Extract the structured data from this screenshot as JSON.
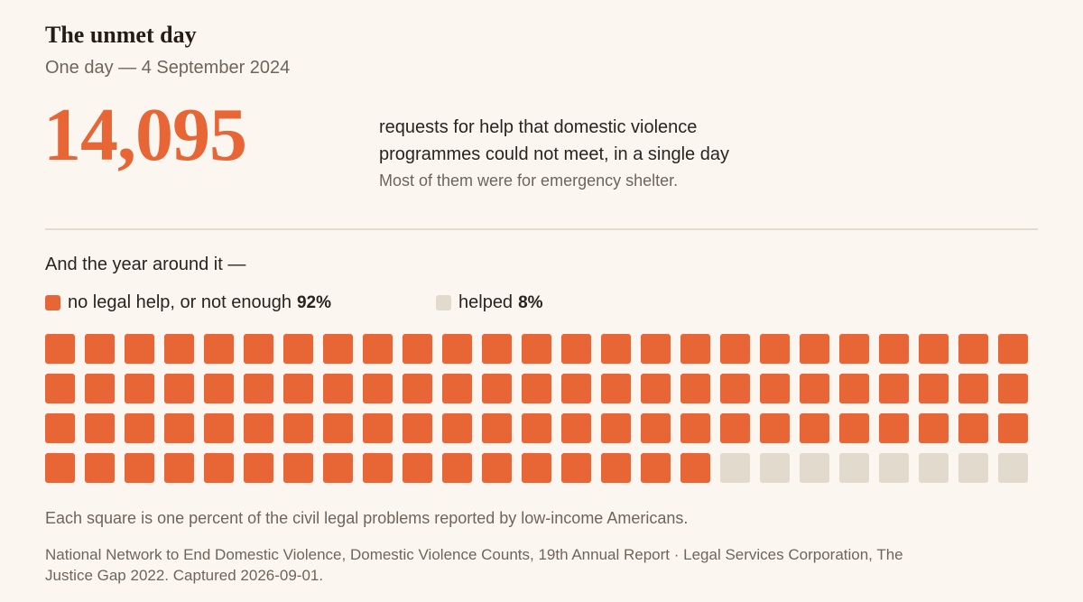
{
  "header": {
    "title": "The unmet day",
    "subtitle": "One day — 4 September 2024"
  },
  "headline": {
    "number": "14,095",
    "description": "requests for help that domestic violence programmes could not meet, in a single day",
    "note": "Most of them were for emergency shelter."
  },
  "section": {
    "label": "And the year around it —"
  },
  "colors": {
    "unmet": "#e86535",
    "helped": "#e2dacd",
    "background": "#fbf7f0"
  },
  "chart_data": {
    "type": "waffle",
    "total_squares": 100,
    "unit": "percent",
    "series": [
      {
        "name": "no legal help, or not enough",
        "value": 92,
        "value_label": "92%",
        "color": "#e86535"
      },
      {
        "name": "helped",
        "value": 8,
        "value_label": "8%",
        "color": "#e2dacd"
      }
    ]
  },
  "footer": {
    "note": "Each square is one percent of the civil legal problems reported by low-income Americans.",
    "source": "National Network to End Domestic Violence, Domestic Violence Counts, 19th Annual Report · Legal Services Corporation, The Justice Gap 2022. Captured 2026-09-01."
  }
}
